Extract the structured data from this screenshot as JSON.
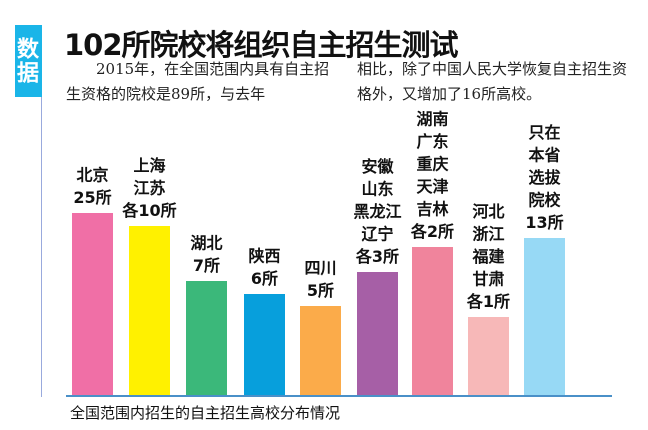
{
  "tag": "数据",
  "title": "102所院校将组织自主招生测试",
  "paragraph_left": "　　2015年，在全国范围内具有自主招生资格的院校是89所，与去年",
  "paragraph_right": "相比，除了中国人民大学恢复自主招生资格外，又增加了16所高校。",
  "chart_data": {
    "type": "bar",
    "title": "",
    "caption": "全国范围内招生的自主招生高校分布情况",
    "categories": [
      [
        "北京",
        "25所"
      ],
      [
        "上海",
        "江苏",
        "各10所"
      ],
      [
        "湖北",
        "7所"
      ],
      [
        "陕西",
        "6所"
      ],
      [
        "四川",
        "5所"
      ],
      [
        "安徽",
        "山东",
        "黑龙江",
        "辽宁",
        "各3所"
      ],
      [
        "湖南",
        "广东",
        "重庆",
        "天津",
        "吉林",
        "各2所"
      ],
      [
        "河北",
        "浙江",
        "福建",
        "甘肃",
        "各1所"
      ],
      [
        "只在",
        "本省",
        "选拔",
        "院校",
        "13所"
      ]
    ],
    "values": [
      25,
      10,
      7,
      6,
      5,
      3,
      2,
      1,
      13
    ],
    "colors": [
      "#f06fa6",
      "#fff100",
      "#3bb87a",
      "#079fdc",
      "#fbab4a",
      "#a65fa6",
      "#f0849c",
      "#f7b8b8",
      "#97d9f5"
    ],
    "axis_color": "#4a90c8",
    "grid": false
  }
}
